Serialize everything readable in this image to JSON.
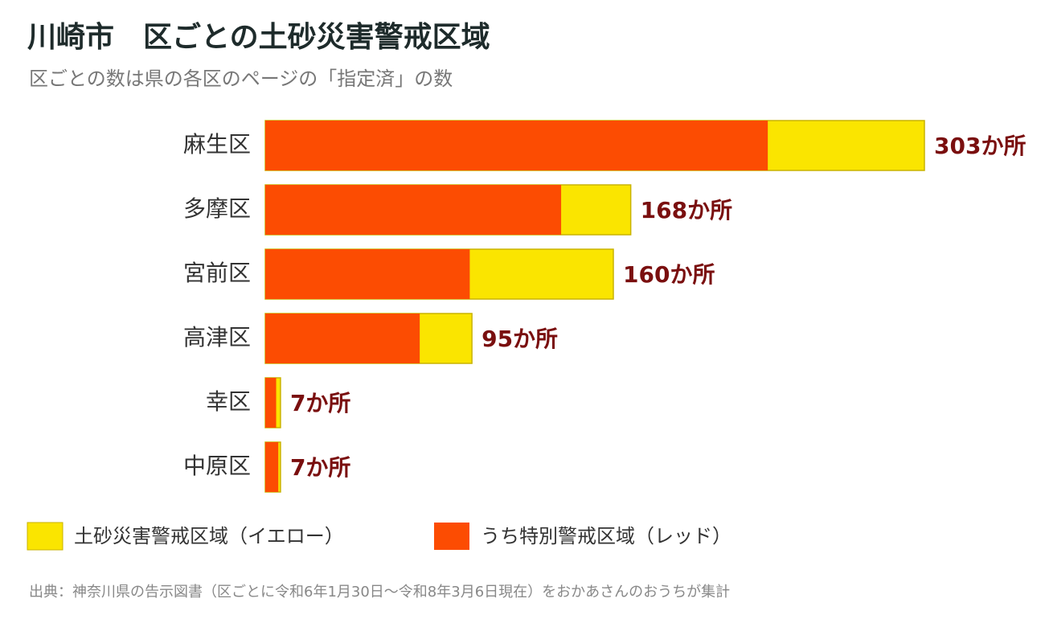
{
  "chart_data": {
    "type": "bar",
    "title": "川崎市　区ごとの土砂災害警戒区域",
    "subtitle": "区ごとの数は県の各区のページの「指定済」の数",
    "categories": [
      "麻生区",
      "多摩区",
      "宮前区",
      "高津区",
      "幸区",
      "中原区"
    ],
    "series": [
      {
        "name": "土砂災害警戒区域（イエロー）",
        "color": "#fae500",
        "values": [
          303,
          168,
          160,
          95,
          7,
          7
        ],
        "value_labels": [
          "303か所",
          "168か所",
          "160か所",
          "95か所",
          "7か所",
          "7か所"
        ]
      },
      {
        "name": "うち特別警戒区域（レッド）",
        "color": "#fc4c02",
        "values": [
          231,
          136,
          94,
          71,
          5,
          6
        ]
      }
    ],
    "source": "出典：神奈川県の告示図書（区ごとに令和6年1月30日～令和8年3月6日現在）をおかあさんのおうちが集計"
  }
}
